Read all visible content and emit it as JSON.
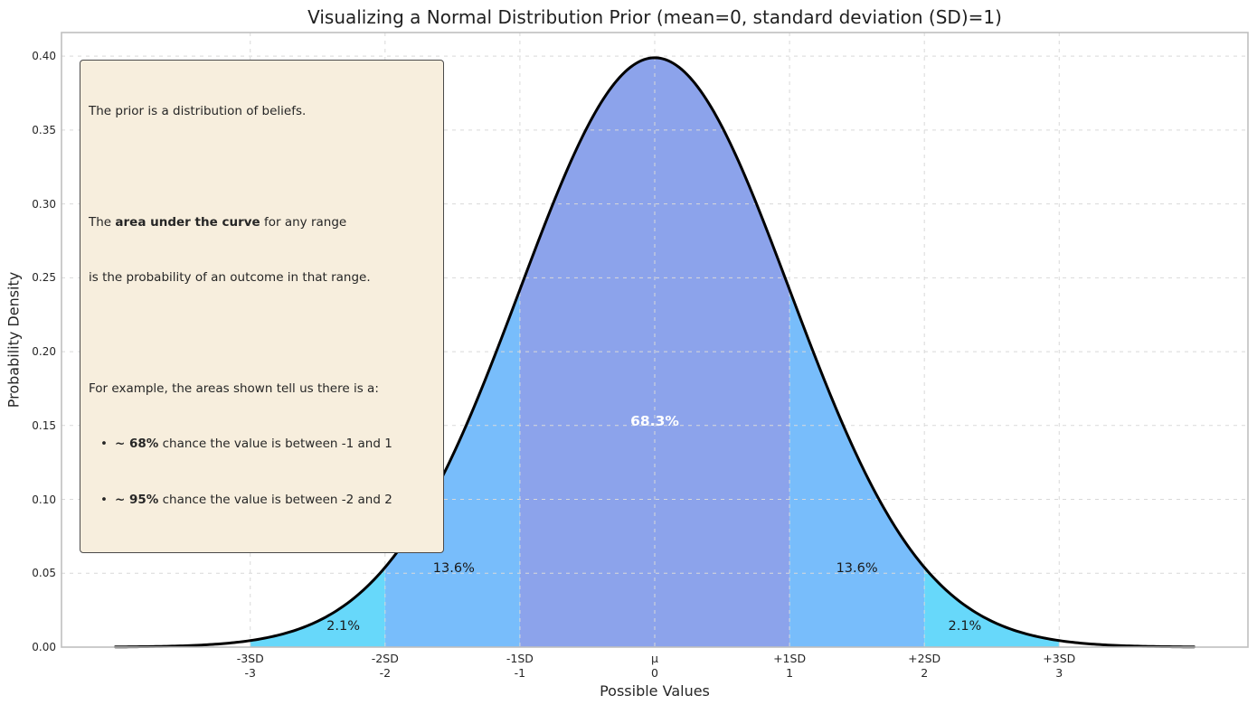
{
  "figure": {
    "title": "Visualizing a Normal Distribution Prior (mean=0, standard deviation (SD)=1)"
  },
  "infobox": {
    "line1": "The prior is a distribution of beliefs.",
    "line2_pre": "The ",
    "line2_bold": "area under the curve",
    "line2_post": " for any range",
    "line3": "is the probability of an outcome in that range.",
    "line4": "For example, the areas shown tell us there is a:",
    "bullet": "•",
    "bullet1_bold": "~ 68%",
    "bullet1_rest": " chance the value is between -1 and 1",
    "bullet2_bold": "~ 95%",
    "bullet2_rest": " chance the value is between -2 and 2"
  },
  "chart_data": {
    "type": "area",
    "title": "Visualizing a Normal Distribution Prior (mean=0, standard deviation (SD)=1)",
    "xlabel": "Possible Values",
    "ylabel": "Probability Density",
    "distribution": {
      "name": "normal",
      "mean": 0,
      "sd": 1
    },
    "curve_x_range": [
      -4,
      4
    ],
    "xlim": [
      -4.4,
      4.4
    ],
    "ylim": [
      0,
      0.416
    ],
    "grid": "dashed",
    "curve_color": "#000000",
    "curve_width": 3,
    "grid_color": "#d9d9d9",
    "spine_color": "#bfbfbf",
    "x_ticks": [
      {
        "x": -3,
        "sd_label": "-3SD",
        "value_label": "-3"
      },
      {
        "x": -2,
        "sd_label": "-2SD",
        "value_label": "-2"
      },
      {
        "x": -1,
        "sd_label": "-1SD",
        "value_label": "-1"
      },
      {
        "x": 0,
        "sd_label": "μ",
        "value_label": "0"
      },
      {
        "x": 1,
        "sd_label": "+1SD",
        "value_label": "1"
      },
      {
        "x": 2,
        "sd_label": "+2SD",
        "value_label": "2"
      },
      {
        "x": 3,
        "sd_label": "+3SD",
        "value_label": "3"
      }
    ],
    "y_ticks": [
      {
        "value": 0.0,
        "label": "0.00"
      },
      {
        "value": 0.05,
        "label": "0.05"
      },
      {
        "value": 0.1,
        "label": "0.10"
      },
      {
        "value": 0.15,
        "label": "0.15"
      },
      {
        "value": 0.2,
        "label": "0.20"
      },
      {
        "value": 0.25,
        "label": "0.25"
      },
      {
        "value": 0.3,
        "label": "0.30"
      },
      {
        "value": 0.35,
        "label": "0.35"
      },
      {
        "value": 0.4,
        "label": "0.40"
      }
    ],
    "bands": [
      {
        "from": -3,
        "to": -2,
        "probability_pct": 2.1,
        "color": "#67d8fa"
      },
      {
        "from": -2,
        "to": -1,
        "probability_pct": 13.6,
        "color": "#78bdfb"
      },
      {
        "from": -1,
        "to": 1,
        "probability_pct": 68.3,
        "color": "#8ca3eb"
      },
      {
        "from": 1,
        "to": 2,
        "probability_pct": 13.6,
        "color": "#78bdfb"
      },
      {
        "from": 2,
        "to": 3,
        "probability_pct": 2.1,
        "color": "#67d8fa"
      }
    ],
    "annotations": [
      {
        "text": "68.3%",
        "x": 0,
        "y": 0.153,
        "color": "#ffffff",
        "bold": true,
        "size": 15.5
      },
      {
        "text": "13.6%",
        "x": -1.49,
        "y": 0.053,
        "color": "#1a1a1a",
        "bold": false,
        "size": 14.5
      },
      {
        "text": "13.6%",
        "x": 1.5,
        "y": 0.053,
        "color": "#1a1a1a",
        "bold": false,
        "size": 14.5
      },
      {
        "text": "2.1%",
        "x": -2.31,
        "y": 0.014,
        "color": "#1a1a1a",
        "bold": false,
        "size": 14.5
      },
      {
        "text": "2.1%",
        "x": 2.3,
        "y": 0.014,
        "color": "#1a1a1a",
        "bold": false,
        "size": 14.5
      }
    ]
  }
}
